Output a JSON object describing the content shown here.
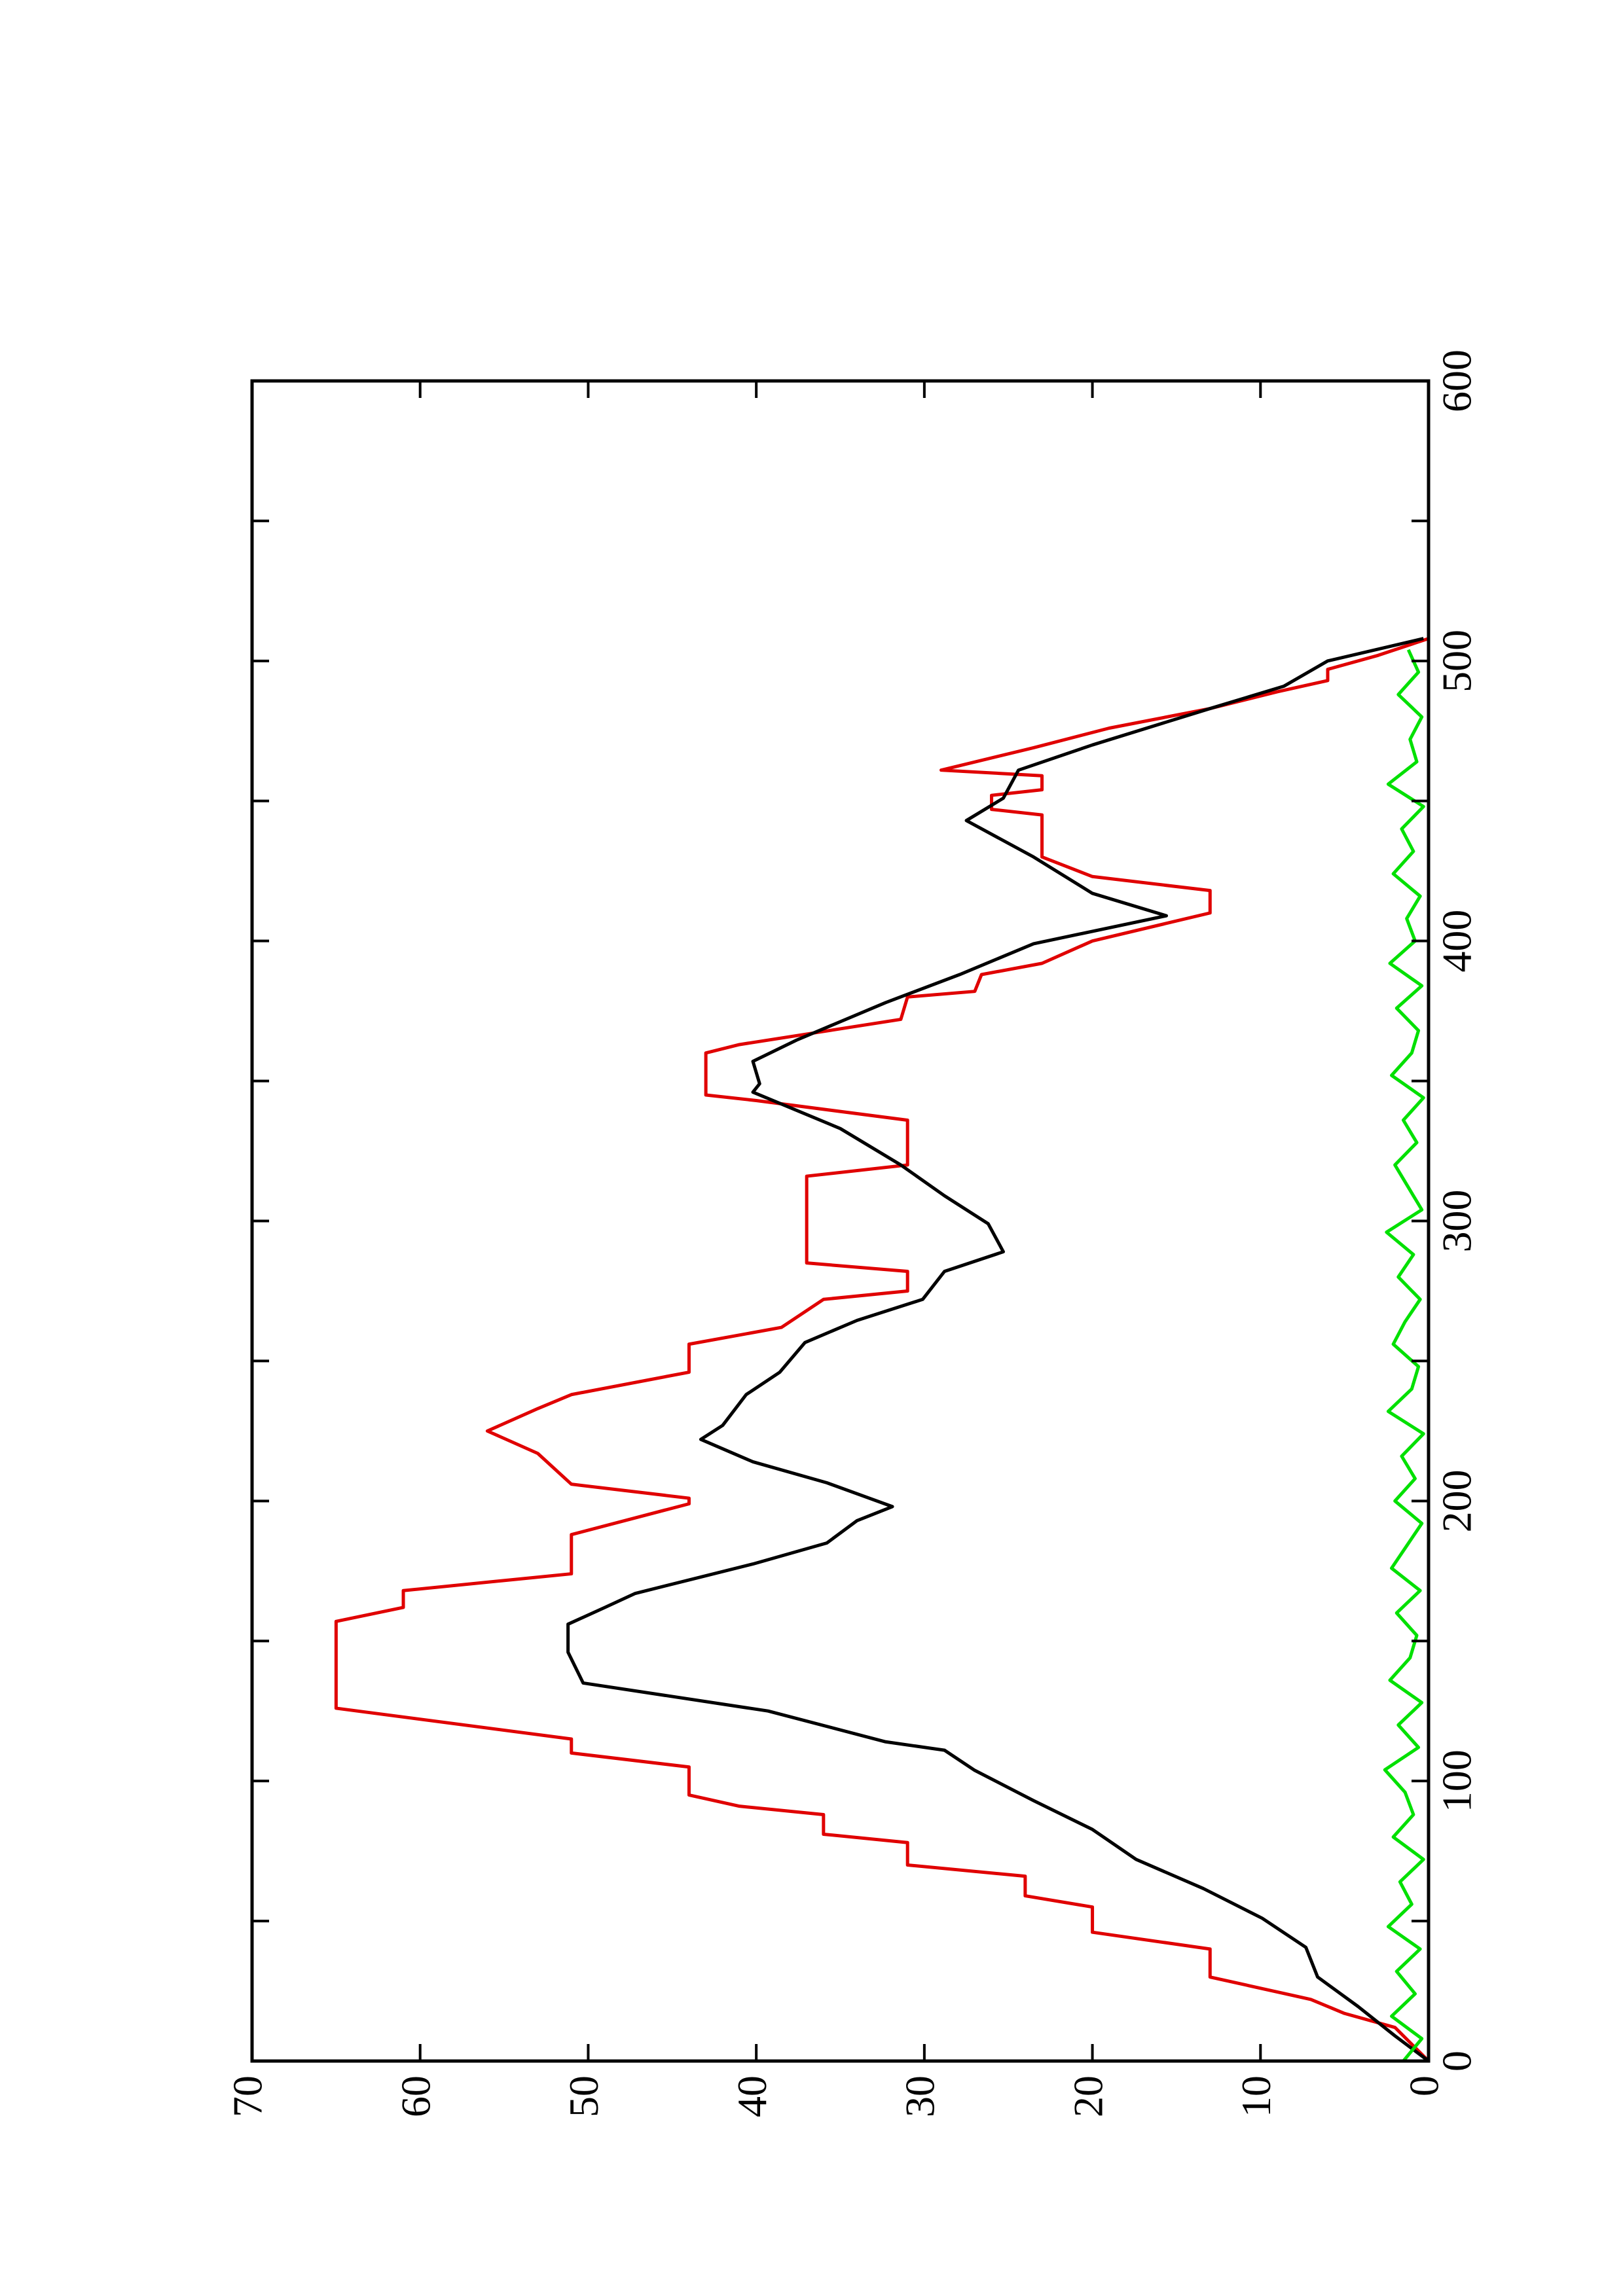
{
  "chart_data": {
    "type": "line",
    "xlim": [
      0,
      600
    ],
    "xticks": [
      0,
      100,
      200,
      300,
      400,
      500,
      600
    ],
    "xminor_ticks": [
      50,
      150,
      250,
      350,
      450,
      550
    ],
    "ylim": [
      0,
      70
    ],
    "yticks": [
      0,
      10,
      20,
      30,
      40,
      50,
      60,
      70
    ],
    "orientation": "rotated",
    "series": [
      {
        "color": "#e00000",
        "x": [
          0,
          12,
          17,
          22,
          30,
          40,
          46,
          55,
          59,
          66,
          70,
          78,
          81,
          88,
          91,
          95,
          105,
          110,
          115,
          126,
          157,
          162,
          168,
          174,
          188,
          199,
          201,
          206,
          217,
          225,
          233,
          238,
          246,
          256,
          262,
          272,
          275,
          282,
          285,
          316,
          320,
          336,
          343,
          345,
          360,
          363,
          372,
          380,
          382,
          388,
          392,
          400,
          410,
          418,
          423,
          430,
          445,
          447,
          452,
          454,
          459,
          461,
          469,
          476,
          483,
          489,
          493,
          497,
          502,
          508
        ],
        "values": [
          0,
          2,
          5,
          7,
          13,
          13,
          20,
          20,
          24,
          24,
          31,
          31,
          36,
          36,
          41,
          44,
          44,
          51,
          51,
          65,
          65,
          61,
          61,
          51,
          51,
          44,
          44,
          51,
          53,
          56,
          53,
          51,
          44,
          44,
          38.5,
          36,
          31,
          31,
          37,
          37,
          31,
          31,
          40,
          43,
          43,
          41,
          31.4,
          31,
          27,
          26.6,
          23,
          20,
          13,
          13,
          20,
          23,
          23,
          26,
          26,
          23,
          23,
          29,
          23.5,
          19,
          13,
          9,
          6,
          6,
          3,
          0
        ]
      },
      {
        "color": "#000000",
        "x": [
          0,
          9,
          19.5,
          30,
          40.6,
          51,
          61.6,
          72,
          82.7,
          93,
          103.8,
          111,
          114,
          125,
          135,
          146,
          156,
          162,
          167,
          177.5,
          185,
          193,
          198,
          206.5,
          214,
          222,
          227,
          238,
          246,
          256.6,
          264.5,
          272,
          282,
          289,
          299,
          309,
          320,
          333,
          346,
          349,
          357,
          364.6,
          378,
          388,
          399,
          409,
          417,
          430,
          443,
          451,
          461,
          470,
          483,
          491,
          500,
          508
        ],
        "values": [
          0,
          2,
          4.2,
          6.6,
          7.3,
          9.9,
          13.4,
          17.4,
          20,
          23.5,
          27,
          28.8,
          32.3,
          39.3,
          50.3,
          51.2,
          51.2,
          49,
          47.2,
          40.2,
          35.8,
          34,
          31.9,
          35.8,
          40.2,
          43.3,
          42,
          40.6,
          38.6,
          37.1,
          34,
          30.1,
          28.8,
          25.3,
          26.2,
          28.8,
          31.4,
          35,
          40.2,
          39.8,
          40.2,
          37.6,
          32.3,
          27.9,
          23.5,
          15.6,
          20,
          23.5,
          27.5,
          25.3,
          24.4,
          20,
          13,
          8.6,
          6,
          0.3
        ]
      },
      {
        "color": "#00e000",
        "x": [
          0,
          8,
          16,
          24,
          32,
          40,
          48,
          56,
          64,
          72,
          80,
          88,
          96,
          104,
          112,
          120,
          128,
          136,
          144,
          152,
          160,
          168,
          176,
          184,
          192,
          200,
          208,
          216,
          224,
          232,
          240,
          248,
          256,
          264,
          272,
          280,
          288,
          296,
          304,
          312,
          320,
          328,
          336,
          344,
          352,
          360,
          368,
          376,
          384,
          392,
          400,
          408,
          416,
          424,
          432,
          440,
          448,
          456,
          464,
          472,
          480,
          488,
          496,
          504
        ],
        "values": [
          1.5,
          0.4,
          2.2,
          0.8,
          1.9,
          0.5,
          2.4,
          1.0,
          1.7,
          0.3,
          2.1,
          0.9,
          1.4,
          2.6,
          0.6,
          1.8,
          0.4,
          2.3,
          1.1,
          0.7,
          1.9,
          0.5,
          2.2,
          1.3,
          0.4,
          2.0,
          0.8,
          1.6,
          0.3,
          2.4,
          1.0,
          0.6,
          2.1,
          1.4,
          0.5,
          1.8,
          0.9,
          2.5,
          0.4,
          1.2,
          2.0,
          0.7,
          1.5,
          0.3,
          2.2,
          1.0,
          0.6,
          1.9,
          0.4,
          2.3,
          0.8,
          1.3,
          0.5,
          2.1,
          0.9,
          1.6,
          0.3,
          2.4,
          0.7,
          1.1,
          0.4,
          1.8,
          0.6,
          1.2
        ]
      }
    ]
  }
}
